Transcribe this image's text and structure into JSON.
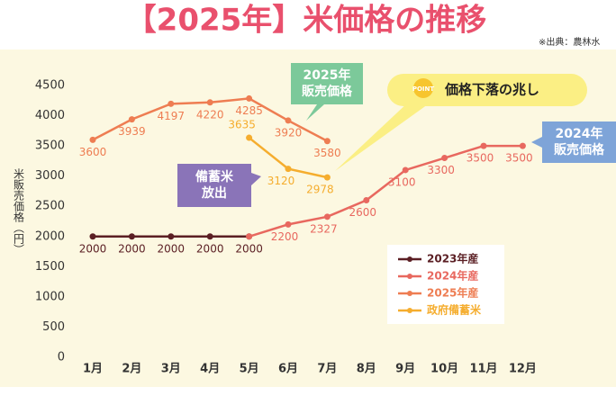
{
  "chart_data": {
    "type": "line",
    "title": "【2025年】米価格の推移",
    "source": "※出典：農林水",
    "y_label": "米販売価格（円）",
    "categories": [
      "1月",
      "2月",
      "3月",
      "4月",
      "5月",
      "6月",
      "7月",
      "8月",
      "9月",
      "10月",
      "11月",
      "12月"
    ],
    "ylim": [
      0,
      4500
    ],
    "yticks": [
      0,
      500,
      1000,
      1500,
      2000,
      2500,
      3000,
      3500,
      4000,
      4500
    ],
    "series": [
      {
        "name": "2023年産",
        "color": "#5b1f24",
        "values": [
          2000,
          2000,
          2000,
          2000,
          2000,
          null,
          null,
          null,
          null,
          null,
          null,
          null
        ]
      },
      {
        "name": "2024年産",
        "color": "#e8685f",
        "values": [
          null,
          null,
          null,
          null,
          2000,
          2200,
          2327,
          2600,
          3100,
          3300,
          3500,
          3500
        ],
        "value_labels": [
          null,
          null,
          null,
          null,
          null,
          "2200",
          "2327",
          "2600",
          "3100",
          "3300",
          "3500",
          "3500"
        ]
      },
      {
        "name": "2025年産",
        "color": "#ee7d52",
        "values": [
          3600,
          3939,
          4197,
          4220,
          4285,
          3920,
          3580,
          null,
          null,
          null,
          null,
          null
        ]
      },
      {
        "name": "政府備蓄米",
        "color": "#f5ad2e",
        "values": [
          null,
          null,
          null,
          null,
          3635,
          3120,
          2978,
          null,
          null,
          null,
          null,
          null
        ]
      }
    ],
    "annotations": {
      "a2025": "2025年\n販売価格",
      "a2024": "2024年\n販売価格",
      "stock": "備蓄米\n放出",
      "drop": "価格下落の兆し",
      "point": "POINT"
    },
    "legend": "lower-right"
  }
}
